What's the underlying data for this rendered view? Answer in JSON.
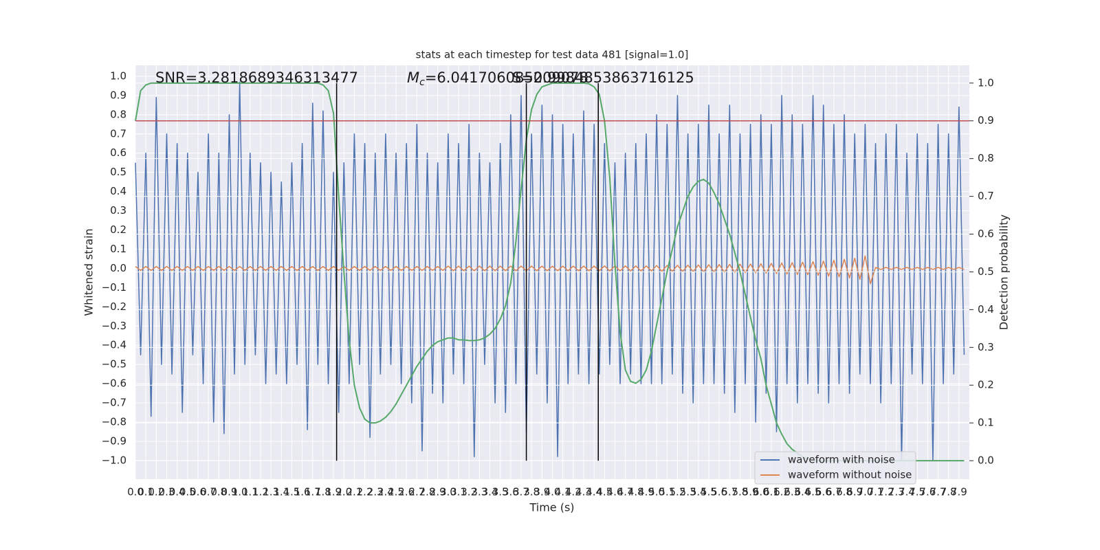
{
  "chart_data": {
    "type": "line",
    "title": "stats at each timestep for test data 481 [signal=1.0]",
    "xlabel": "Time (s)",
    "ylabel": "Whitened strain",
    "y2label": "Detection probability",
    "annotations": [
      {
        "text": "SNR=3.2818689346313477"
      },
      {
        "symbol": "M",
        "subscript": "c",
        "text": "=6.041706085209078"
      },
      {
        "text": "S=0.9984853863716125"
      }
    ],
    "xlim": [
      0,
      8
    ],
    "ylim": [
      -1.097,
      1.057
    ],
    "y2lim": [
      -0.049,
      1.047
    ],
    "grid": true,
    "legend": "lower right",
    "xticks": [
      {
        "value": 0,
        "label": "0.0"
      },
      0.1,
      0.2,
      0.3,
      0.4,
      0.5,
      0.6,
      0.7,
      0.8,
      0.9,
      {
        "value": 1,
        "label": "1.0"
      },
      1.1,
      1.2,
      1.3,
      1.4,
      1.5,
      1.6,
      1.7,
      1.8,
      1.9,
      {
        "value": 2,
        "label": "2.0"
      },
      2.1,
      2.2,
      2.3,
      2.4,
      2.5,
      2.6,
      2.7,
      2.8,
      2.9,
      {
        "value": 3,
        "label": "3.0"
      },
      3.1,
      3.2,
      3.3,
      3.4,
      3.5,
      3.6,
      3.7,
      3.8,
      3.9,
      {
        "value": 4,
        "label": "4.0"
      },
      4.1,
      4.2,
      4.3,
      4.4,
      4.5,
      4.6,
      4.7,
      4.8,
      4.9,
      {
        "value": 5,
        "label": "5.0"
      },
      5.1,
      5.2,
      5.3,
      5.4,
      5.5,
      5.6,
      5.7,
      5.8,
      5.9,
      {
        "value": 6,
        "label": "6.0"
      },
      6.1,
      6.2,
      6.3,
      6.4,
      6.5,
      6.6,
      6.7,
      6.8,
      6.9,
      {
        "value": 7,
        "label": "7.0"
      },
      7.1,
      7.2,
      7.3,
      7.4,
      7.5,
      7.6,
      7.7,
      7.8,
      7.9
    ],
    "yticks": [
      {
        "value": -1,
        "label": "−1.0"
      },
      {
        "value": -0.9,
        "label": "−0.9"
      },
      {
        "value": -0.8,
        "label": "−0.8"
      },
      {
        "value": -0.7,
        "label": "−0.7"
      },
      {
        "value": -0.6,
        "label": "−0.6"
      },
      {
        "value": -0.5,
        "label": "−0.5"
      },
      {
        "value": -0.4,
        "label": "−0.4"
      },
      {
        "value": -0.3,
        "label": "−0.3"
      },
      {
        "value": -0.2,
        "label": "−0.2"
      },
      {
        "value": -0.1,
        "label": "−0.1"
      },
      {
        "value": 0,
        "label": "0.0"
      },
      0.1,
      0.2,
      0.3,
      0.4,
      0.5,
      0.6,
      0.7,
      0.8,
      0.9,
      {
        "value": 1,
        "label": "1.0"
      }
    ],
    "y2ticks": [
      {
        "value": 0,
        "label": "0.0"
      },
      0.1,
      0.2,
      0.3,
      0.4,
      0.5,
      0.6,
      0.7,
      0.8,
      0.9,
      {
        "value": 1,
        "label": "1.0"
      }
    ],
    "threshold": {
      "value": 0.9,
      "axis": "y2",
      "color": "#c44e52"
    },
    "vlines": {
      "x": [
        1.93,
        3.75,
        4.44
      ],
      "axis": "y2",
      "color": "#000000"
    },
    "x": [
      0,
      0.05,
      0.1,
      0.15,
      0.2,
      0.25,
      0.3,
      0.35,
      0.4,
      0.45,
      0.5,
      0.55,
      0.6,
      0.65,
      0.7,
      0.75,
      0.8,
      0.85,
      0.9,
      0.95,
      1,
      1.05,
      1.1,
      1.15,
      1.2,
      1.25,
      1.3,
      1.35,
      1.4,
      1.45,
      1.5,
      1.55,
      1.6,
      1.65,
      1.7,
      1.75,
      1.8,
      1.85,
      1.9,
      1.95,
      2,
      2.05,
      2.1,
      2.15,
      2.2,
      2.25,
      2.3,
      2.35,
      2.4,
      2.45,
      2.5,
      2.55,
      2.6,
      2.65,
      2.7,
      2.75,
      2.8,
      2.85,
      2.9,
      2.95,
      3,
      3.05,
      3.1,
      3.15,
      3.2,
      3.25,
      3.3,
      3.35,
      3.4,
      3.45,
      3.5,
      3.55,
      3.6,
      3.65,
      3.7,
      3.75,
      3.8,
      3.85,
      3.9,
      3.95,
      4,
      4.05,
      4.1,
      4.15,
      4.2,
      4.25,
      4.3,
      4.35,
      4.4,
      4.45,
      4.5,
      4.55,
      4.6,
      4.65,
      4.7,
      4.75,
      4.8,
      4.85,
      4.9,
      4.95,
      5,
      5.05,
      5.1,
      5.15,
      5.2,
      5.25,
      5.3,
      5.35,
      5.4,
      5.45,
      5.5,
      5.55,
      5.6,
      5.65,
      5.7,
      5.75,
      5.8,
      5.85,
      5.9,
      5.95,
      6,
      6.05,
      6.1,
      6.15,
      6.2,
      6.25,
      6.3,
      6.35,
      6.4,
      6.45,
      6.5,
      6.55,
      6.6,
      6.65,
      6.7,
      6.75,
      6.8,
      6.85,
      6.9,
      6.95,
      7,
      7.05,
      7.1,
      7.15,
      7.2,
      7.25,
      7.3,
      7.35,
      7.4,
      7.45,
      7.5,
      7.55,
      7.6,
      7.65,
      7.7,
      7.75,
      7.8,
      7.85,
      7.9,
      7.95
    ],
    "series": [
      {
        "name": "waveform with noise",
        "color": "#4c72b0",
        "values": [
          0.55,
          -0.45,
          0.6,
          -0.77,
          0.89,
          -0.5,
          0.7,
          -0.55,
          0.65,
          -0.75,
          0.6,
          -0.45,
          0.5,
          -0.6,
          0.7,
          -0.8,
          0.6,
          -0.86,
          0.8,
          -0.55,
          0.97,
          -0.5,
          0.6,
          -0.45,
          0.55,
          -0.6,
          0.5,
          -0.55,
          0.45,
          -0.6,
          0.55,
          -0.5,
          0.65,
          -0.84,
          0.86,
          -0.5,
          0.82,
          -0.6,
          0.5,
          -0.75,
          0.55,
          -0.6,
          0.7,
          -0.5,
          0.65,
          -0.88,
          0.6,
          -0.55,
          0.7,
          -0.5,
          0.6,
          -0.6,
          0.65,
          -0.7,
          0.75,
          -0.95,
          0.6,
          -0.65,
          0.55,
          -0.7,
          0.7,
          -0.55,
          0.65,
          -0.6,
          0.75,
          -0.98,
          0.6,
          -0.5,
          0.55,
          -0.7,
          0.65,
          -0.75,
          0.8,
          -0.6,
          0.9,
          -0.85,
          0.7,
          -0.55,
          0.85,
          -0.7,
          0.8,
          -0.98,
          0.75,
          -0.6,
          0.7,
          -0.55,
          0.82,
          -0.6,
          0.75,
          -0.55,
          0.65,
          -0.5,
          0.55,
          -0.6,
          0.6,
          -0.55,
          0.65,
          -0.6,
          0.7,
          -0.6,
          0.8,
          -0.6,
          0.75,
          -0.55,
          0.9,
          -0.65,
          0.7,
          -0.7,
          0.75,
          -0.6,
          0.85,
          -0.6,
          0.7,
          -0.65,
          0.85,
          -0.75,
          0.7,
          -0.6,
          0.75,
          -0.8,
          0.8,
          -0.65,
          0.75,
          -0.85,
          0.9,
          -0.6,
          0.8,
          -0.7,
          0.75,
          -0.6,
          0.9,
          -0.65,
          0.85,
          -0.7,
          0.75,
          -0.6,
          0.8,
          -0.65,
          0.7,
          -0.55,
          0.75,
          -0.6,
          0.65,
          -0.7,
          0.7,
          -0.6,
          0.75,
          -1.0,
          0.6,
          -0.55,
          0.7,
          -0.6,
          0.65,
          -1.0,
          0.75,
          -0.6,
          0.7,
          -0.55,
          0.84,
          -0.45
        ]
      },
      {
        "name": "waveform without noise",
        "color": "#dd8452",
        "values": [
          0.01,
          -0.01,
          0.01,
          -0.01,
          0.01,
          -0.01,
          0.01,
          -0.01,
          0.01,
          -0.01,
          0.01,
          -0.01,
          0.01,
          -0.01,
          0.01,
          -0.01,
          0.01,
          -0.01,
          0.01,
          -0.01,
          0.01,
          -0.01,
          0.01,
          -0.01,
          0.01,
          -0.01,
          0.01,
          -0.01,
          0.01,
          -0.01,
          0.01,
          -0.01,
          0.01,
          -0.01,
          0.01,
          -0.01,
          0.01,
          -0.01,
          0.01,
          -0.01,
          0.01,
          -0.01,
          0.01,
          -0.01,
          0.01,
          -0.01,
          0.01,
          -0.01,
          0.01,
          -0.01,
          0.01,
          -0.01,
          0.01,
          -0.01,
          0.01,
          -0.01,
          0.01,
          -0.01,
          0.01,
          -0.01,
          0.012,
          -0.012,
          0.012,
          -0.012,
          0.012,
          -0.012,
          0.012,
          -0.012,
          0.012,
          -0.012,
          0.012,
          -0.012,
          0.012,
          -0.012,
          0.012,
          -0.012,
          0.012,
          -0.012,
          0.012,
          -0.012,
          0.012,
          -0.012,
          0.012,
          -0.012,
          0.012,
          -0.012,
          0.012,
          -0.012,
          0.012,
          -0.012,
          0.013,
          -0.013,
          0.013,
          -0.013,
          0.013,
          -0.013,
          0.013,
          -0.013,
          0.013,
          -0.013,
          0.015,
          -0.015,
          0.015,
          -0.015,
          0.016,
          -0.016,
          0.017,
          -0.017,
          0.018,
          -0.018,
          0.019,
          -0.019,
          0.02,
          -0.02,
          0.021,
          -0.021,
          0.022,
          -0.022,
          0.023,
          -0.023,
          0.024,
          -0.025,
          0.026,
          -0.027,
          0.028,
          -0.029,
          0.03,
          -0.031,
          0.032,
          -0.033,
          0.035,
          -0.036,
          0.038,
          -0.04,
          0.042,
          -0.044,
          0.047,
          -0.05,
          0.053,
          -0.057,
          0.065,
          -0.08,
          0.005,
          -0.005,
          0.005,
          -0.005,
          0.005,
          -0.005,
          0.005,
          -0.005,
          0.005,
          -0.005,
          0.005,
          -0.005,
          0.005,
          -0.005,
          0.005,
          -0.005,
          0.005,
          -0.005
        ]
      },
      {
        "color": "#55a868",
        "axis": "y2",
        "values": [
          0.9,
          0.98,
          0.995,
          1,
          1,
          1,
          1,
          1,
          1,
          1,
          1,
          1,
          1,
          1,
          1,
          1,
          1,
          1,
          1,
          1,
          1,
          1,
          1,
          1,
          1,
          1,
          1,
          1,
          1,
          1,
          1,
          1,
          1,
          1,
          1,
          1,
          0.995,
          0.98,
          0.92,
          0.7,
          0.5,
          0.32,
          0.2,
          0.14,
          0.11,
          0.1,
          0.1,
          0.105,
          0.115,
          0.13,
          0.15,
          0.175,
          0.2,
          0.225,
          0.25,
          0.27,
          0.29,
          0.305,
          0.315,
          0.32,
          0.325,
          0.325,
          0.32,
          0.32,
          0.318,
          0.318,
          0.32,
          0.325,
          0.335,
          0.35,
          0.375,
          0.41,
          0.47,
          0.58,
          0.72,
          0.85,
          0.93,
          0.97,
          0.99,
          0.995,
          1,
          1,
          1,
          1,
          1,
          1,
          1,
          0.998,
          0.99,
          0.97,
          0.9,
          0.75,
          0.52,
          0.34,
          0.24,
          0.21,
          0.205,
          0.215,
          0.24,
          0.29,
          0.36,
          0.43,
          0.5,
          0.56,
          0.62,
          0.66,
          0.7,
          0.725,
          0.74,
          0.745,
          0.735,
          0.71,
          0.68,
          0.64,
          0.6,
          0.55,
          0.5,
          0.44,
          0.38,
          0.32,
          0.27,
          0.2,
          0.15,
          0.1,
          0.07,
          0.045,
          0.03,
          0.02,
          0.01,
          0.005,
          0,
          0,
          0,
          0,
          0,
          0,
          0,
          0,
          0,
          0,
          0,
          0,
          0,
          0,
          0,
          0,
          0,
          0,
          0,
          0,
          0,
          0,
          0,
          0,
          0,
          0,
          0,
          0,
          0,
          0
        ]
      }
    ]
  }
}
